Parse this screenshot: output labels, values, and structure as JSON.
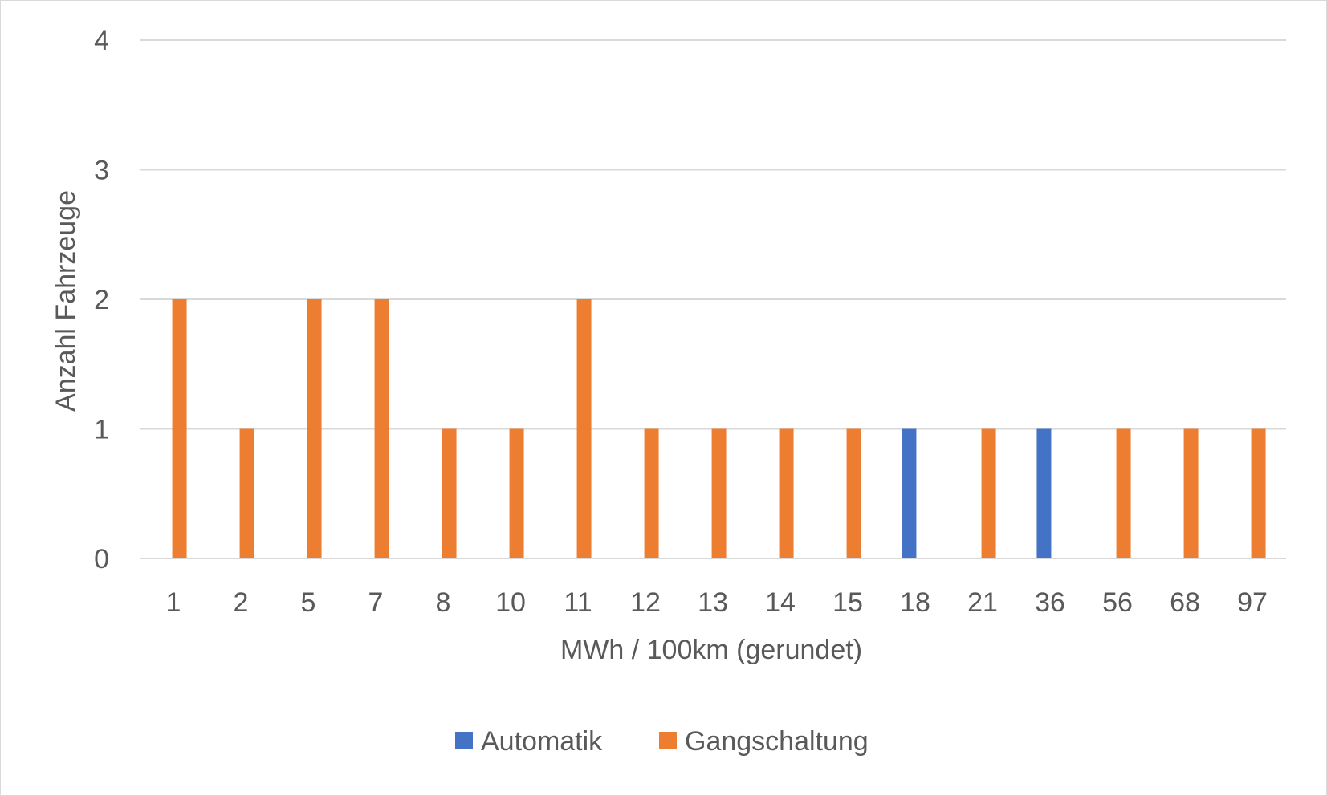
{
  "chart_data": {
    "type": "bar",
    "title": "",
    "xlabel": "MWh / 100km (gerundet)",
    "ylabel": "Anzahl Fahrzeuge",
    "ylim": [
      0,
      4
    ],
    "yticks": [
      0,
      1,
      2,
      3,
      4
    ],
    "grid": true,
    "legend_position": "bottom",
    "categories": [
      "1",
      "2",
      "5",
      "7",
      "8",
      "10",
      "11",
      "12",
      "13",
      "14",
      "15",
      "18",
      "21",
      "36",
      "56",
      "68",
      "97"
    ],
    "series": [
      {
        "name": "Automatik",
        "color": "#4472c4",
        "values": [
          0,
          0,
          0,
          0,
          0,
          0,
          0,
          0,
          0,
          0,
          0,
          1,
          0,
          1,
          0,
          0,
          0
        ]
      },
      {
        "name": "Gangschaltung",
        "color": "#ed7d31",
        "values": [
          2,
          1,
          2,
          2,
          1,
          1,
          2,
          1,
          1,
          1,
          1,
          0,
          1,
          0,
          1,
          1,
          1
        ]
      }
    ]
  }
}
